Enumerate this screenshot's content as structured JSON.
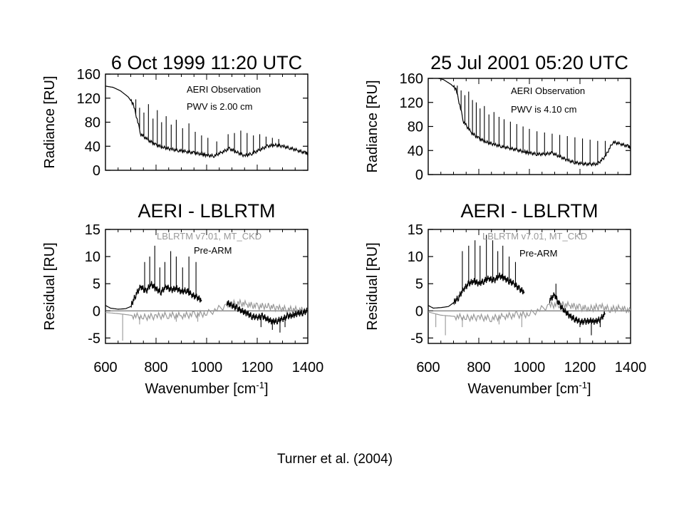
{
  "caption": "Turner et al. (2004)",
  "colors": {
    "observation": "#000000",
    "pre_arm": "#000000",
    "lblrtm": "#999999",
    "zero_line": "#555555"
  },
  "chart_data": [
    {
      "id": "radiance_1999",
      "type": "line",
      "title": "6 Oct 1999   11:20 UTC",
      "xlabel": "",
      "ylabel": "Radiance [RU]",
      "xlim": [
        600,
        1400
      ],
      "ylim": [
        0,
        160
      ],
      "yticks": [
        0,
        40,
        80,
        120,
        160
      ],
      "xticks": [],
      "annotations": [
        "AERI Observation",
        "PWV is 2.00 cm"
      ],
      "series": [
        {
          "x": [
            600,
            630,
            660,
            690,
            710,
            740,
            770,
            800,
            830,
            860,
            890,
            920,
            950,
            980,
            1000,
            1030,
            1060,
            1090,
            1120,
            1150,
            1180,
            1210,
            1240,
            1270,
            1300,
            1330,
            1360,
            1390,
            1400
          ],
          "y": [
            140,
            138,
            132,
            122,
            110,
            60,
            50,
            42,
            38,
            35,
            33,
            31,
            29,
            27,
            25,
            24,
            30,
            36,
            30,
            24,
            28,
            34,
            40,
            42,
            40,
            37,
            33,
            29,
            28
          ],
          "spikes": [
            {
              "x": 720,
              "top": 118
            },
            {
              "x": 735,
              "top": 104
            },
            {
              "x": 752,
              "top": 96
            },
            {
              "x": 770,
              "top": 110
            },
            {
              "x": 788,
              "top": 86
            },
            {
              "x": 805,
              "top": 100
            },
            {
              "x": 822,
              "top": 80
            },
            {
              "x": 840,
              "top": 90
            },
            {
              "x": 860,
              "top": 76
            },
            {
              "x": 880,
              "top": 84
            },
            {
              "x": 905,
              "top": 70
            },
            {
              "x": 930,
              "top": 78
            },
            {
              "x": 955,
              "top": 64
            },
            {
              "x": 980,
              "top": 58
            },
            {
              "x": 1005,
              "top": 54
            },
            {
              "x": 1040,
              "top": 48
            },
            {
              "x": 1085,
              "top": 60
            },
            {
              "x": 1110,
              "top": 62
            },
            {
              "x": 1135,
              "top": 66
            },
            {
              "x": 1160,
              "top": 62
            },
            {
              "x": 1185,
              "top": 58
            },
            {
              "x": 1210,
              "top": 60
            },
            {
              "x": 1235,
              "top": 56
            },
            {
              "x": 1260,
              "top": 54
            },
            {
              "x": 1285,
              "top": 52
            }
          ]
        }
      ]
    },
    {
      "id": "radiance_2001",
      "type": "line",
      "title": "25 Jul 2001   05:20 UTC",
      "xlabel": "",
      "ylabel": "Radiance [RU]",
      "xlim": [
        600,
        1400
      ],
      "ylim": [
        0,
        160
      ],
      "yticks": [
        0,
        40,
        80,
        120,
        160
      ],
      "xticks": [],
      "annotations": [
        "AERI Observation",
        "PWV is 4.10 cm"
      ],
      "series": [
        {
          "x": [
            600,
            630,
            660,
            690,
            710,
            740,
            770,
            800,
            830,
            860,
            890,
            920,
            950,
            980,
            1000,
            1030,
            1060,
            1090,
            1120,
            1150,
            1180,
            1210,
            1240,
            1270,
            1300,
            1330,
            1360,
            1390,
            1400
          ],
          "y": [
            162,
            161,
            158,
            150,
            142,
            88,
            70,
            60,
            54,
            50,
            47,
            44,
            41,
            38,
            36,
            34,
            34,
            36,
            30,
            24,
            20,
            18,
            17,
            18,
            30,
            54,
            51,
            47,
            45
          ],
          "spikes": [
            {
              "x": 715,
              "top": 148
            },
            {
              "x": 730,
              "top": 140
            },
            {
              "x": 745,
              "top": 132
            },
            {
              "x": 760,
              "top": 138
            },
            {
              "x": 775,
              "top": 124
            },
            {
              "x": 790,
              "top": 120
            },
            {
              "x": 805,
              "top": 110
            },
            {
              "x": 822,
              "top": 114
            },
            {
              "x": 840,
              "top": 100
            },
            {
              "x": 860,
              "top": 104
            },
            {
              "x": 880,
              "top": 96
            },
            {
              "x": 900,
              "top": 92
            },
            {
              "x": 925,
              "top": 88
            },
            {
              "x": 950,
              "top": 84
            },
            {
              "x": 975,
              "top": 80
            },
            {
              "x": 1000,
              "top": 76
            },
            {
              "x": 1030,
              "top": 72
            },
            {
              "x": 1060,
              "top": 70
            },
            {
              "x": 1090,
              "top": 68
            },
            {
              "x": 1120,
              "top": 66
            },
            {
              "x": 1150,
              "top": 64
            },
            {
              "x": 1180,
              "top": 62
            },
            {
              "x": 1210,
              "top": 60
            },
            {
              "x": 1240,
              "top": 58
            },
            {
              "x": 1270,
              "top": 56
            },
            {
              "x": 1300,
              "top": 56
            }
          ]
        }
      ]
    },
    {
      "id": "residual_1999",
      "type": "line",
      "title": "AERI - LBLRTM",
      "xlabel": "Wavenumber [cm-1]",
      "ylabel": "Residual [RU]",
      "xlim": [
        600,
        1400
      ],
      "ylim": [
        -6,
        15
      ],
      "yticks": [
        -5,
        0,
        5,
        10,
        15
      ],
      "xticks": [
        600,
        800,
        1000,
        1200,
        1400
      ],
      "legend": [
        "LBLRTM v7.01, MT_CKD",
        "Pre-ARM"
      ],
      "series": [
        {
          "name": "Pre-ARM",
          "x": [
            600,
            620,
            650,
            680,
            700,
            720,
            740,
            760,
            780,
            800,
            820,
            840,
            860,
            880,
            900,
            920,
            940,
            960,
            980
          ],
          "y": [
            1.0,
            0.5,
            0.3,
            0.4,
            0.8,
            3.0,
            4.5,
            3.5,
            5.0,
            4.0,
            3.5,
            4.5,
            3.8,
            4.2,
            3.5,
            3.8,
            3.0,
            2.5,
            2.0
          ],
          "spikes": [
            {
              "x": 755,
              "top": 9
            },
            {
              "x": 775,
              "top": 10
            },
            {
              "x": 795,
              "top": 12
            },
            {
              "x": 815,
              "top": 8
            },
            {
              "x": 835,
              "top": 9
            },
            {
              "x": 858,
              "top": 11
            },
            {
              "x": 880,
              "top": 10
            },
            {
              "x": 905,
              "top": 8
            },
            {
              "x": 930,
              "top": 10
            },
            {
              "x": 958,
              "top": 9
            }
          ]
        },
        {
          "name": "Pre-ARM",
          "x": [
            1080,
            1100,
            1120,
            1140,
            1160,
            1180,
            1200,
            1220,
            1240,
            1260,
            1280,
            1300,
            1320,
            1340,
            1360,
            1380,
            1400
          ],
          "y": [
            1.5,
            1.0,
            0.5,
            0.0,
            -0.5,
            -1.0,
            -1.2,
            -1.0,
            -1.5,
            -2.0,
            -1.8,
            -1.5,
            -1.0,
            -0.8,
            -0.5,
            -0.3,
            0.0
          ],
          "spikes": [
            {
              "x": 1215,
              "top": -3.0
            },
            {
              "x": 1260,
              "top": -3.5
            },
            {
              "x": 1290,
              "top": -4.0
            },
            {
              "x": 1310,
              "top": -3.0
            }
          ]
        },
        {
          "name": "LBLRTM v7.01, MT_CKD",
          "x": [
            600,
            650,
            700,
            750,
            800,
            850,
            900,
            950,
            1000,
            1080,
            1120,
            1160,
            1200,
            1240,
            1280,
            1320,
            1360,
            1400
          ],
          "y": [
            -0.3,
            -0.5,
            -0.8,
            -1.2,
            -1.0,
            -0.8,
            -0.9,
            -0.7,
            -0.5,
            1.0,
            1.5,
            1.2,
            0.8,
            0.9,
            0.5,
            0.3,
            0.2,
            0.0
          ],
          "spikes": [
            {
              "x": 668,
              "top": -5.5
            },
            {
              "x": 735,
              "top": -2.5
            },
            {
              "x": 880,
              "top": -2.0
            },
            {
              "x": 965,
              "top": -2.0
            }
          ]
        }
      ]
    },
    {
      "id": "residual_2001",
      "type": "line",
      "title": "AERI - LBLRTM",
      "xlabel": "Wavenumber [cm-1]",
      "ylabel": "Residual [RU]",
      "xlim": [
        600,
        1400
      ],
      "ylim": [
        -6,
        15
      ],
      "yticks": [
        -5,
        0,
        5,
        10,
        15
      ],
      "xticks": [
        600,
        800,
        1000,
        1200,
        1400
      ],
      "legend": [
        "LBLRTM v7.01, MT_CKD",
        "Pre-ARM"
      ],
      "series": [
        {
          "name": "Pre-ARM",
          "x": [
            600,
            620,
            650,
            680,
            700,
            720,
            740,
            760,
            780,
            800,
            820,
            840,
            860,
            880,
            900,
            920,
            940,
            960,
            980
          ],
          "y": [
            1.0,
            0.5,
            0.6,
            0.8,
            1.5,
            2.5,
            4.0,
            5.0,
            5.5,
            5.0,
            5.5,
            6.0,
            5.5,
            6.5,
            6.0,
            5.5,
            5.0,
            4.0,
            3.5
          ],
          "spikes": [
            {
              "x": 735,
              "top": 11
            },
            {
              "x": 760,
              "top": 12
            },
            {
              "x": 785,
              "top": 13
            },
            {
              "x": 805,
              "top": 12
            },
            {
              "x": 830,
              "top": 14
            },
            {
              "x": 855,
              "top": 13
            },
            {
              "x": 875,
              "top": 11
            },
            {
              "x": 895,
              "top": 12
            },
            {
              "x": 920,
              "top": 10
            },
            {
              "x": 945,
              "top": 9
            }
          ]
        },
        {
          "name": "Pre-ARM",
          "x": [
            1080,
            1100,
            1120,
            1140,
            1160,
            1180,
            1200,
            1220,
            1240,
            1260,
            1280,
            1300
          ],
          "y": [
            2.0,
            3.0,
            1.0,
            0.0,
            -1.0,
            -1.5,
            -2.0,
            -2.0,
            -1.8,
            -2.0,
            -1.5,
            -0.5
          ],
          "spikes": [
            {
              "x": 1105,
              "top": 5.0
            },
            {
              "x": 1200,
              "top": -3.0
            },
            {
              "x": 1245,
              "top": -4.5
            },
            {
              "x": 1280,
              "top": -3.0
            }
          ]
        },
        {
          "name": "LBLRTM v7.01, MT_CKD",
          "x": [
            600,
            650,
            700,
            750,
            800,
            850,
            900,
            950,
            1000,
            1080,
            1120,
            1160,
            1200,
            1240,
            1280,
            1320,
            1360,
            1400
          ],
          "y": [
            -0.2,
            -0.8,
            -1.0,
            -1.3,
            -1.2,
            -1.4,
            -1.0,
            -0.8,
            -0.6,
            1.0,
            1.2,
            1.0,
            0.6,
            0.4,
            0.8,
            0.3,
            0.5,
            0.0
          ],
          "spikes": [
            {
              "x": 630,
              "top": -3.0
            },
            {
              "x": 668,
              "top": -4.5
            },
            {
              "x": 735,
              "top": -3.0
            },
            {
              "x": 880,
              "top": -2.5
            },
            {
              "x": 970,
              "top": -3.0
            }
          ]
        }
      ]
    }
  ]
}
